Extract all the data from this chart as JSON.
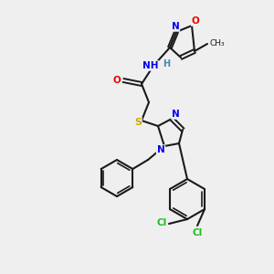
{
  "background_color": "#efefef",
  "bond_color": "#1a1a1a",
  "atom_colors": {
    "N": "#0000ee",
    "O": "#ee0000",
    "S": "#ccaa00",
    "Cl": "#22bb22",
    "H": "#4488aa",
    "C": "#1a1a1a"
  },
  "figsize": [
    3.0,
    3.0
  ],
  "dpi": 100
}
